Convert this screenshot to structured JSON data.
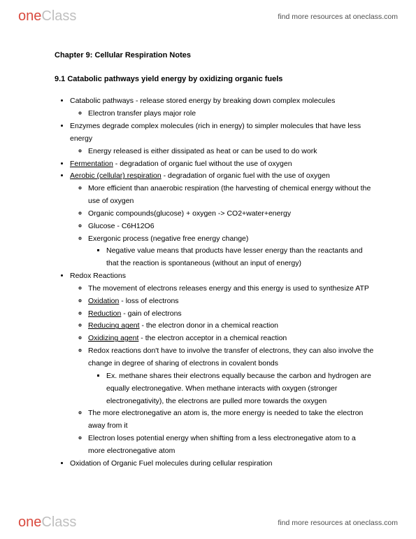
{
  "brand": {
    "one": "one",
    "class": "Class"
  },
  "resourcesLink": "find more resources at oneclass.com",
  "chapterTitle": "Chapter 9: Cellular Respiration Notes",
  "sectionTitle": "9.1 Catabolic pathways yield energy by oxidizing organic fuels",
  "b": {
    "catabolic": "Catabolic pathways - release stored energy by breaking down complex molecules",
    "electronTransfer": "Electron transfer plays major role",
    "enzymes": "Enzymes degrade complex molecules (rich in energy) to simpler molecules that have less energy",
    "energyReleased": "Energy released is either dissipated as heat or can be used to do work",
    "fermentationU": "Fermentation",
    "fermentationRest": " - degradation of organic fuel without the use of oxygen",
    "aerobicU": "Aerobic (cellular) respiration",
    "aerobicRest": " - degradation of organic fuel with the use of oxygen",
    "moreEfficient": "More efficient than anaerobic respiration (the harvesting of chemical energy without the use of oxygen",
    "organicCompounds": "Organic compounds(glucose) + oxygen -> CO2+water+energy",
    "glucose": "Glucose - C6H12O6",
    "exergonic": "Exergonic process (negative free energy change)",
    "negativeValue": "Negative value means that products have lesser energy than the reactants and that the reaction is spontaneous (without an input of energy)",
    "redox": "Redox Reactions",
    "movement": "The movement of electrons releases energy and this energy is used to synthesize ATP",
    "oxidationU": "Oxidation",
    "oxidationRest": " - loss of electrons",
    "reductionU": "Reduction",
    "reductionRest": " - gain of electrons",
    "reducingU": "Reducing agent",
    "reducingRest": " - the electron donor in a chemical reaction",
    "oxidizingU": "Oxidizing agent",
    "oxidizingRest": " - the electron acceptor in a chemical reaction",
    "redoxNote": "Redox reactions don't have to involve the transfer of electrons, they can also involve the change in degree of sharing of electrons in covalent bonds",
    "methane": "Ex. methane shares their electrons equally because the carbon and hydrogen are equally electronegative. When methane interacts with oxygen (stronger electronegativity), the electrons are pulled more towards the oxygen",
    "moreEN": "The more electronegative an atom is, the more energy is needed to take the electron away from it",
    "electronLoses": "Electron loses potential energy when shifting from a less electronegative atom to a more electronegative atom",
    "oxidationFuel": "Oxidation of Organic Fuel molecules during cellular respiration"
  }
}
